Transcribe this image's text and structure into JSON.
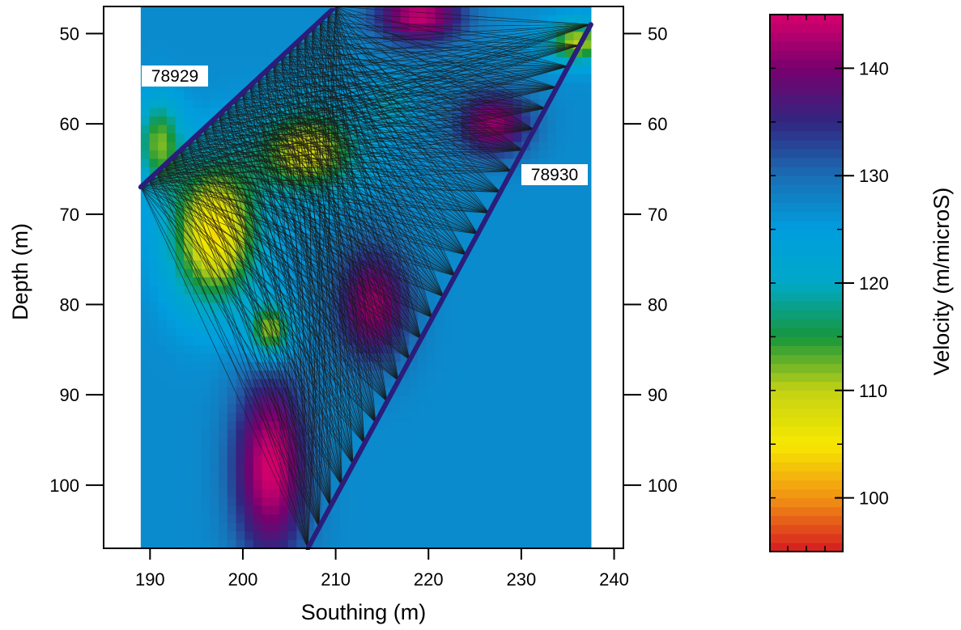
{
  "chart_data": {
    "type": "heatmap",
    "title": "",
    "xlabel": "Southing (m)",
    "ylabel": "Depth (m)",
    "colorbar_label": "Velocity (m/microS)",
    "xlim": [
      185,
      241
    ],
    "ylim": [
      47,
      107
    ],
    "y_inverted": true,
    "x_ticks": [
      190,
      200,
      210,
      220,
      230,
      240
    ],
    "y_ticks": [
      50,
      60,
      70,
      80,
      90,
      100
    ],
    "colorbar_range": [
      95,
      145
    ],
    "colorbar_ticks": [
      100,
      110,
      120,
      130,
      140
    ],
    "grid": false,
    "background_value": 127,
    "anomalies": [
      {
        "x": 203,
        "y": 98,
        "rx": 5,
        "ry": 13,
        "value": 145
      },
      {
        "x": 214,
        "y": 80,
        "rx": 5,
        "ry": 8,
        "value": 142
      },
      {
        "x": 219,
        "y": 48,
        "rx": 6,
        "ry": 4,
        "value": 144
      },
      {
        "x": 227,
        "y": 60,
        "rx": 5,
        "ry": 4.5,
        "value": 142
      },
      {
        "x": 197,
        "y": 72,
        "rx": 6,
        "ry": 10,
        "value": 104
      },
      {
        "x": 207,
        "y": 63,
        "rx": 7,
        "ry": 6,
        "value": 108
      },
      {
        "x": 203,
        "y": 83,
        "rx": 3,
        "ry": 4,
        "value": 110
      },
      {
        "x": 236,
        "y": 51,
        "rx": 4,
        "ry": 3,
        "value": 110
      },
      {
        "x": 191,
        "y": 62,
        "rx": 3,
        "ry": 6,
        "value": 113
      },
      {
        "x": 216,
        "y": 58,
        "rx": 3,
        "ry": 3,
        "value": 120
      }
    ],
    "wells": [
      {
        "name": "78929",
        "top": [
          210,
          47
        ],
        "bottom": [
          189,
          67
        ]
      },
      {
        "name": "78930",
        "top": [
          237.5,
          49
        ],
        "bottom": [
          207,
          107
        ]
      }
    ],
    "sensor_count": 26,
    "data_extent": [
      189,
      237.5
    ]
  }
}
